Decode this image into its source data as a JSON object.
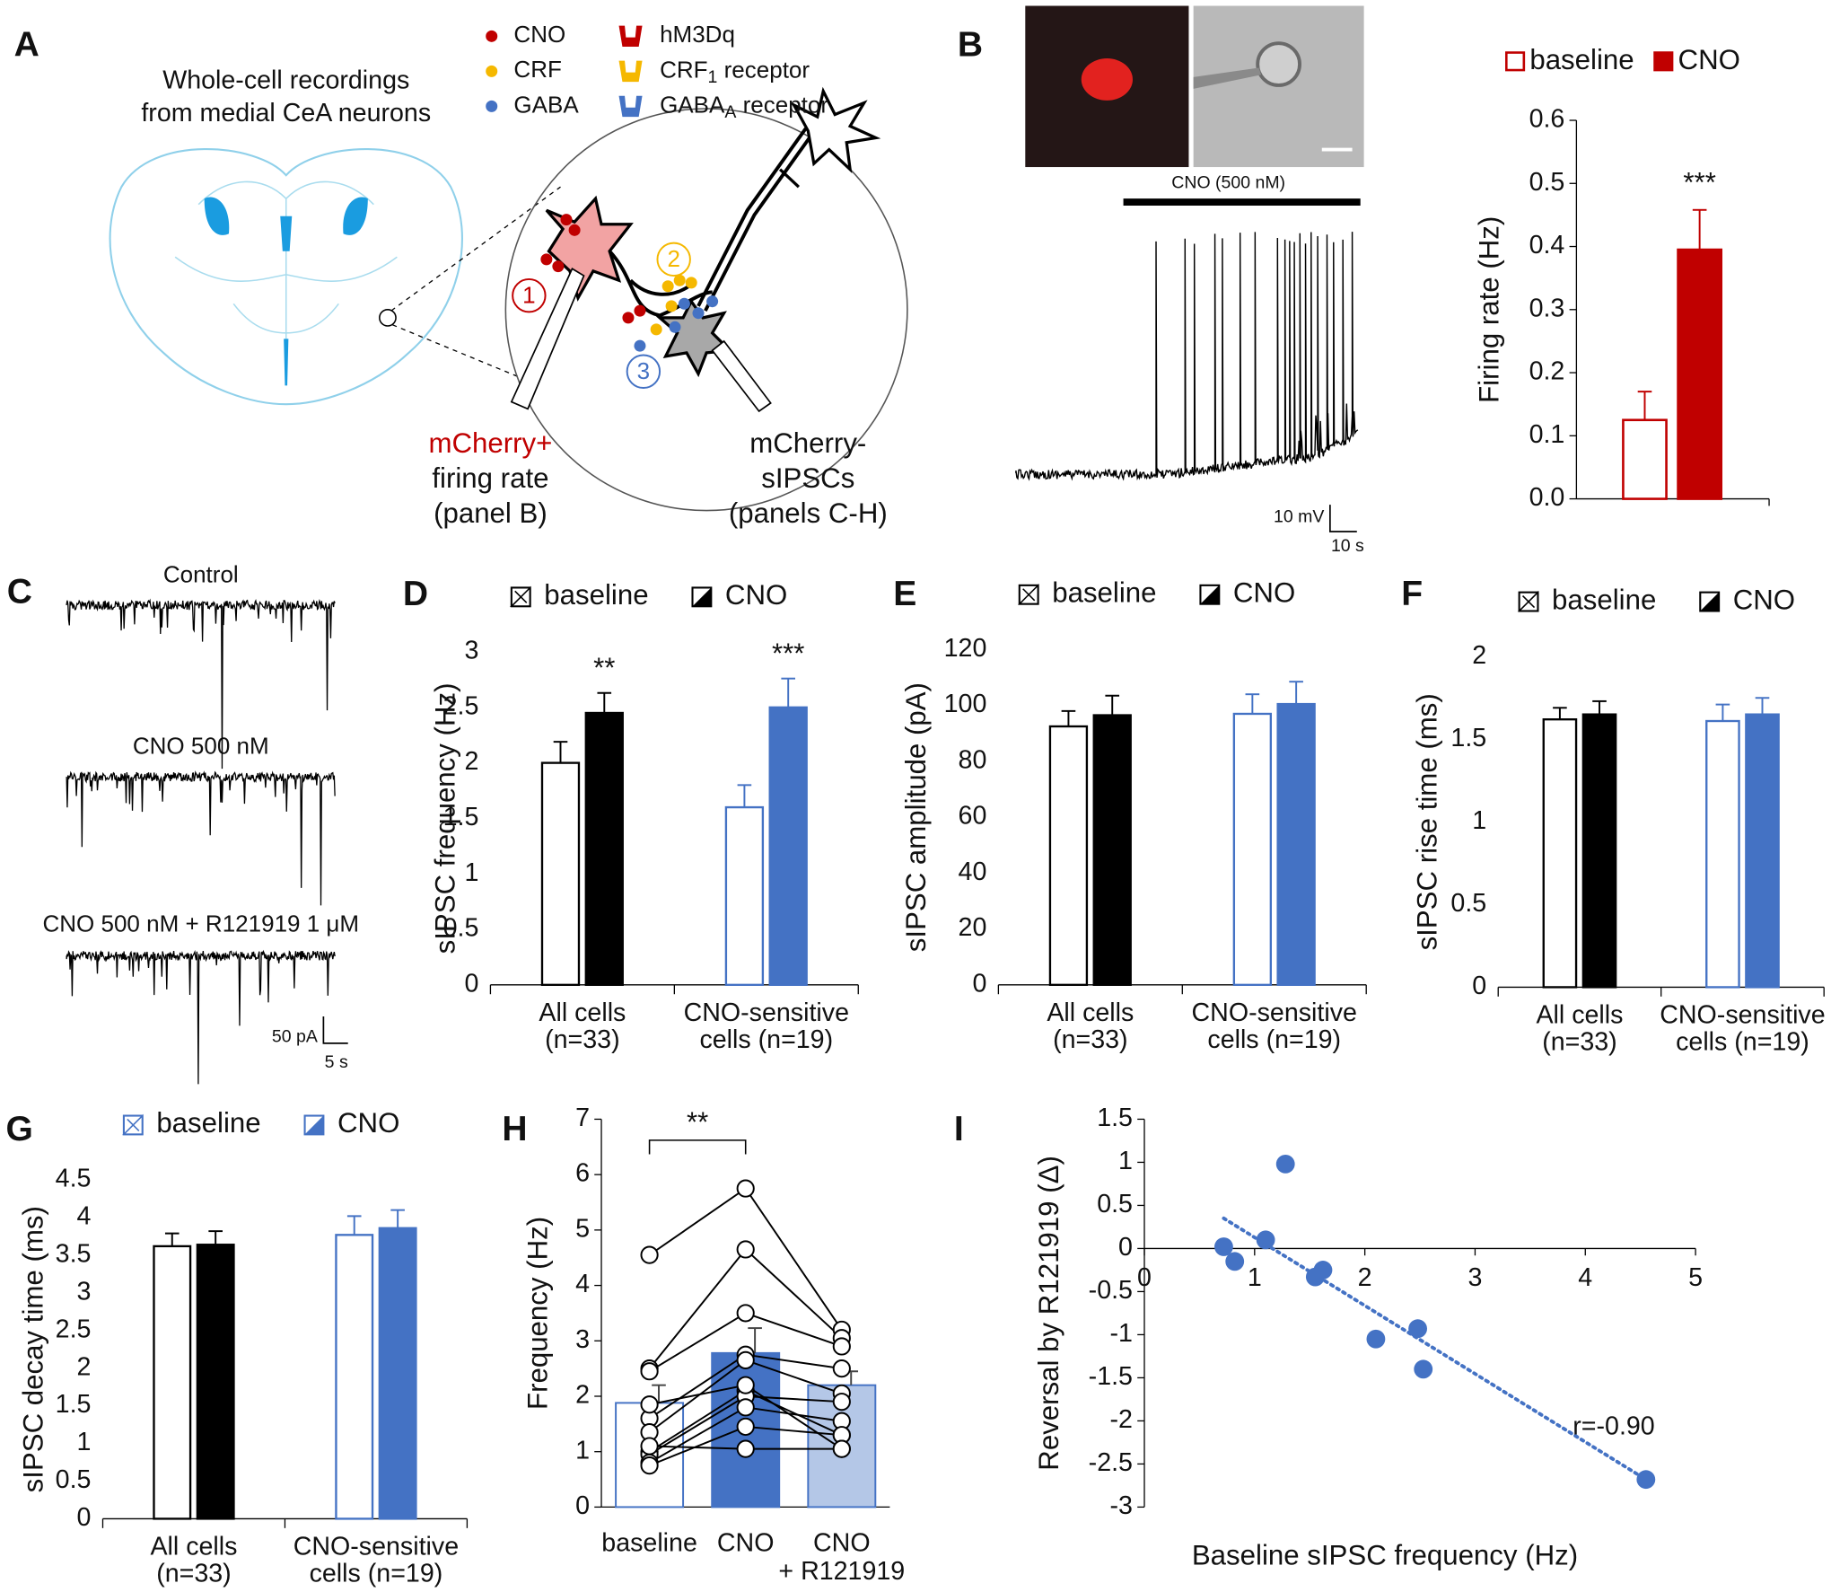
{
  "panel_labels": [
    "A",
    "B",
    "C",
    "D",
    "E",
    "F",
    "G",
    "H",
    "I"
  ],
  "diagram": {
    "title": [
      "Whole-cell recordings",
      "from medial CeA neurons"
    ],
    "legend_left": [
      "CNO",
      "CRF",
      "GABA"
    ],
    "legend_right": [
      {
        "text": "hM3Dq"
      },
      {
        "text": "CRF",
        "sub": "1",
        "rest": " receptor"
      },
      {
        "text": "GABA",
        "sub": "A",
        "rest": " receptor"
      }
    ],
    "markers": [
      "1",
      "2",
      "3"
    ],
    "left_caption": [
      "mCherry+",
      "firing rate",
      "(panel B)"
    ],
    "right_caption": [
      "mCherry-",
      "sIPSCs",
      "(panels C-H)"
    ]
  },
  "panel_b": {
    "drug": "CNO (500 nM)",
    "scale": [
      "10 mV",
      "10 s"
    ]
  },
  "panel_c": {
    "labels": [
      "Control",
      "CNO 500 nM",
      "CNO 500 nM + R121919 1 μM"
    ],
    "scale": [
      "50 pA",
      "5 s"
    ]
  },
  "chart_data": [
    {
      "type": "bar",
      "ylabel": "Firing rate (Hz)",
      "ylim": [
        0,
        0.6
      ],
      "yticks": [
        {
          "value": 0,
          "label": "0.0"
        },
        0.1,
        0.2,
        0.3,
        0.4,
        0.5,
        0.6
      ],
      "series": [
        {
          "name": "baseline",
          "color": "#c00000",
          "fill": "#ffffff",
          "values": [
            0.125
          ],
          "errors": [
            0.045
          ]
        },
        {
          "name": "CNO",
          "color": "#c00000",
          "fill": "#c00000",
          "values": [
            0.395
          ],
          "errors": [
            0.063
          ],
          "stars": [
            "***"
          ]
        }
      ]
    },
    {
      "type": "grouped_bar",
      "ylabel": "sIPSC frequency (Hz)",
      "categories": [
        [
          "All cells",
          "(n=33)"
        ],
        [
          "CNO-sensitive",
          "cells (n=19)"
        ]
      ],
      "ylim": [
        0,
        3
      ],
      "yticks": [
        0,
        0.5,
        1,
        1.5,
        2,
        2.5,
        3
      ],
      "legend_edge": "#000000",
      "series": [
        {
          "name": "baseline",
          "edges": [
            "#000000",
            "#4472c4"
          ],
          "fills": [
            "#ffffff",
            "#ffffff"
          ],
          "values": [
            2.0,
            1.6
          ],
          "errors": [
            0.19,
            0.2
          ]
        },
        {
          "name": "CNO",
          "edges": [
            "#000000",
            "#4472c4"
          ],
          "fills": [
            "#000000",
            "#4472c4"
          ],
          "values": [
            2.45,
            2.5
          ],
          "errors": [
            0.18,
            0.26
          ],
          "stars": [
            "**",
            "***"
          ]
        }
      ]
    },
    {
      "type": "grouped_bar",
      "ylabel": "sIPSC amplitude (pA)",
      "categories": [
        [
          "All cells",
          "(n=33)"
        ],
        [
          "CNO-sensitive",
          "cells (n=19)"
        ]
      ],
      "ylim": [
        0,
        120
      ],
      "yticks": [
        0,
        20,
        40,
        60,
        80,
        100,
        120
      ],
      "legend_edge": "#000000",
      "series": [
        {
          "name": "baseline",
          "edges": [
            "#000000",
            "#4472c4"
          ],
          "fills": [
            "#ffffff",
            "#ffffff"
          ],
          "values": [
            92.5,
            97
          ],
          "errors": [
            5.5,
            7
          ]
        },
        {
          "name": "CNO",
          "edges": [
            "#000000",
            "#4472c4"
          ],
          "fills": [
            "#000000",
            "#4472c4"
          ],
          "values": [
            96.5,
            100.5
          ],
          "errors": [
            7,
            8
          ]
        }
      ]
    },
    {
      "type": "grouped_bar",
      "ylabel": "sIPSC rise time (ms)",
      "categories": [
        [
          "All cells",
          "(n=33)"
        ],
        [
          "CNO-sensitive",
          "cells (n=19)"
        ]
      ],
      "ylim": [
        0,
        2
      ],
      "yticks": [
        0,
        0.5,
        1,
        1.5,
        2
      ],
      "legend_edge": "#000000",
      "series": [
        {
          "name": "baseline",
          "edges": [
            "#000000",
            "#4472c4"
          ],
          "fills": [
            "#ffffff",
            "#ffffff"
          ],
          "values": [
            1.62,
            1.61
          ],
          "errors": [
            0.07,
            0.1
          ]
        },
        {
          "name": "CNO",
          "edges": [
            "#000000",
            "#4472c4"
          ],
          "fills": [
            "#000000",
            "#4472c4"
          ],
          "values": [
            1.65,
            1.65
          ],
          "errors": [
            0.08,
            0.1
          ]
        }
      ]
    },
    {
      "type": "grouped_bar",
      "ylabel": "sIPSC decay time (ms)",
      "categories": [
        [
          "All cells",
          "(n=33)"
        ],
        [
          "CNO-sensitive",
          "cells (n=19)"
        ]
      ],
      "ylim": [
        0,
        4.5
      ],
      "yticks": [
        0,
        0.5,
        1,
        1.5,
        2,
        2.5,
        3,
        3.5,
        4,
        4.5
      ],
      "legend_edge": "#4472c4",
      "series": [
        {
          "name": "baseline",
          "edges": [
            "#000000",
            "#4472c4"
          ],
          "fills": [
            "#ffffff",
            "#ffffff"
          ],
          "values": [
            3.62,
            3.77
          ],
          "errors": [
            0.17,
            0.25
          ]
        },
        {
          "name": "CNO",
          "edges": [
            "#000000",
            "#4472c4"
          ],
          "fills": [
            "#000000",
            "#4472c4"
          ],
          "values": [
            3.64,
            3.86
          ],
          "errors": [
            0.18,
            0.24
          ]
        }
      ]
    },
    {
      "type": "bar_paired",
      "ylabel": "Frequency (Hz)",
      "categories": [
        [
          "baseline"
        ],
        [
          "CNO"
        ],
        [
          "CNO",
          "+ R121919"
        ]
      ],
      "ylim": [
        0,
        7
      ],
      "yticks": [
        0,
        1,
        2,
        3,
        4,
        5,
        6,
        7
      ],
      "values": [
        1.88,
        2.78,
        2.2
      ],
      "errors": [
        0.32,
        0.45,
        0.25
      ],
      "fills": [
        "#ffffff",
        "#4472c4",
        "#b4c7e7"
      ],
      "edge": "#4472c4",
      "cells": [
        [
          4.55,
          5.75,
          3.2
        ],
        [
          2.5,
          4.65,
          3.05
        ],
        [
          2.45,
          3.5,
          2.9
        ],
        [
          1.6,
          2.75,
          2.5
        ],
        [
          1.35,
          2.65,
          2.05
        ],
        [
          1.0,
          2.1,
          1.3
        ],
        [
          0.95,
          2.0,
          1.9
        ],
        [
          0.8,
          1.8,
          1.55
        ],
        [
          0.75,
          1.45,
          1.3
        ],
        [
          1.85,
          2.2,
          1.05
        ],
        [
          1.1,
          1.05,
          1.05
        ]
      ],
      "annotation": "**"
    },
    {
      "type": "scatter",
      "xlabel": "Baseline sIPSC frequency (Hz)",
      "ylabel": "Reversal by R121919 (Δ)",
      "x": [
        0.72,
        0.82,
        1.1,
        1.28,
        1.55,
        1.62,
        2.1,
        2.48,
        2.53,
        4.55
      ],
      "y": [
        0.02,
        -0.15,
        0.1,
        0.98,
        -0.33,
        -0.25,
        -1.05,
        -0.93,
        -1.4,
        -2.68
      ],
      "color": "#4472c4",
      "xlim": [
        0,
        5
      ],
      "xticks": [
        0,
        1,
        2,
        3,
        4,
        5
      ],
      "ylim": [
        -3,
        1.5
      ],
      "yticks": [
        -3,
        -2.5,
        -2,
        -1.5,
        -1,
        -0.5,
        0,
        0.5,
        1,
        1.5
      ],
      "trend": {
        "x": [
          0.72,
          4.55
        ],
        "y": [
          0.35,
          -2.68
        ]
      },
      "annotation": "r=-0.90"
    }
  ]
}
